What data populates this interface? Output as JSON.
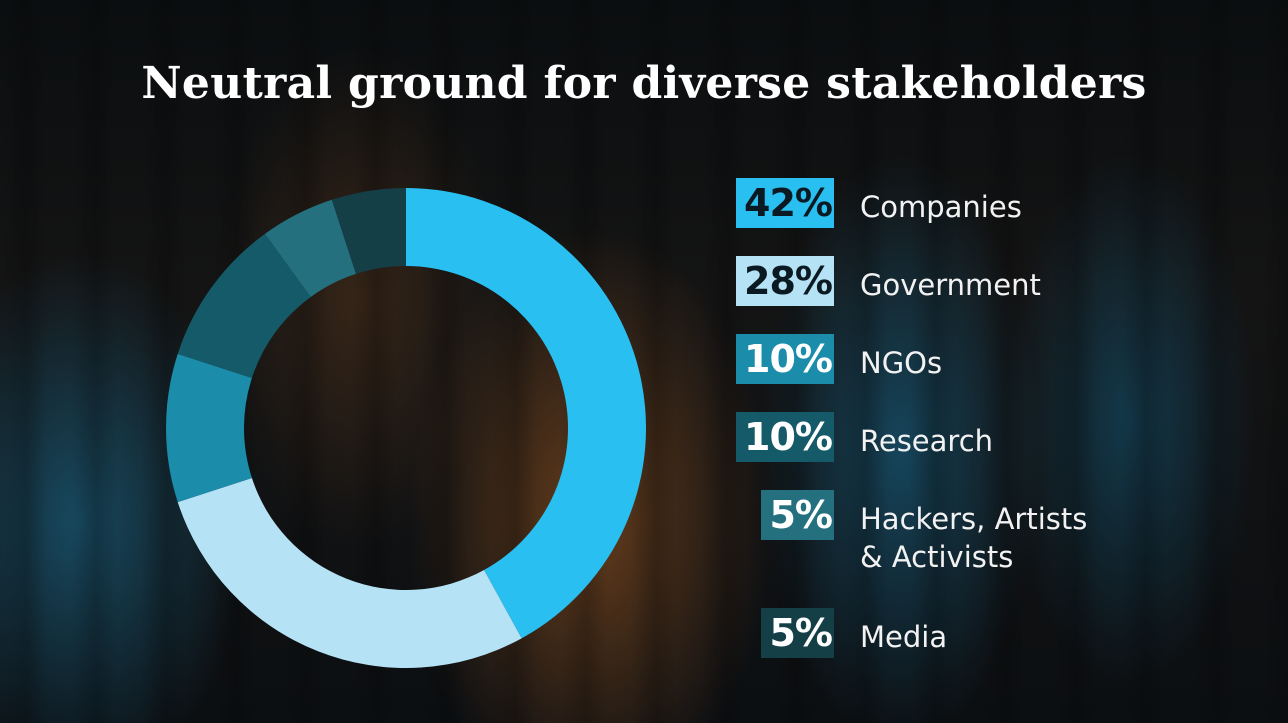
{
  "title": "Neutral ground for diverse stakeholders",
  "chart_data": {
    "type": "pie",
    "title": "Neutral ground for diverse stakeholders",
    "categories": [
      "Companies",
      "Government",
      "NGOs",
      "Research",
      "Hackers, Artists & Activists",
      "Media"
    ],
    "values": [
      42,
      28,
      10,
      10,
      5,
      5
    ],
    "value_labels": [
      "42%",
      "28%",
      "10%",
      "10%",
      "5%",
      "5%"
    ],
    "label_lines": [
      [
        "Companies"
      ],
      [
        "Government"
      ],
      [
        "NGOs"
      ],
      [
        "Research"
      ],
      [
        "Hackers, Artists",
        "& Activists"
      ],
      [
        "Media"
      ]
    ],
    "colors": [
      "#29bff0",
      "#b5e2f5",
      "#1b8caa",
      "#155a68",
      "#25707f",
      "#153f47"
    ],
    "legend": "right",
    "style": "donut"
  }
}
